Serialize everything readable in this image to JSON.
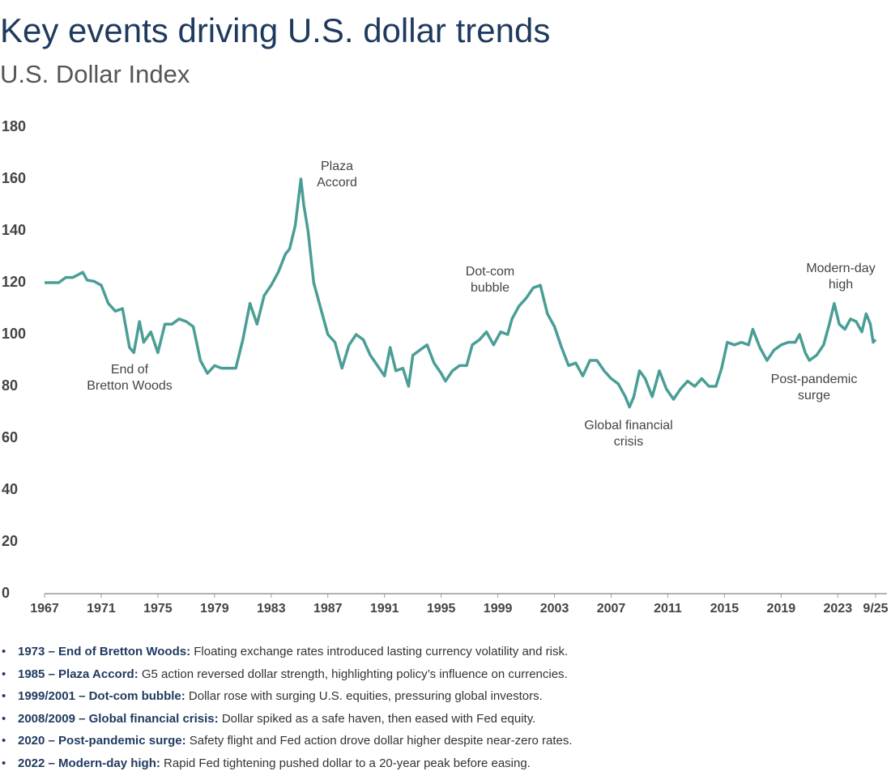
{
  "chart_data": {
    "type": "line",
    "title": "Key events driving U.S. dollar trends",
    "subtitle": "U.S. Dollar Index",
    "x": [
      1967,
      1968,
      1968.5,
      1969,
      1969.7,
      1970,
      1970.5,
      1971,
      1971.5,
      1972,
      1972.5,
      1973,
      1973.3,
      1973.7,
      1974,
      1974.5,
      1975,
      1975.5,
      1976,
      1976.5,
      1977,
      1977.5,
      1978,
      1978.5,
      1979,
      1979.5,
      1980,
      1980.5,
      1981,
      1981.5,
      1982,
      1982.5,
      1983,
      1983.5,
      1984,
      1984.3,
      1984.7,
      1985.1,
      1985.3,
      1985.6,
      1986,
      1986.5,
      1987,
      1987.5,
      1988,
      1988.5,
      1989,
      1989.5,
      1990,
      1990.5,
      1991,
      1991.4,
      1991.8,
      1992.3,
      1992.7,
      1993,
      1993.5,
      1994,
      1994.5,
      1995,
      1995.3,
      1995.8,
      1996.3,
      1996.8,
      1997.2,
      1997.7,
      1998.2,
      1998.7,
      1999.2,
      1999.7,
      2000,
      2000.5,
      2001,
      2001.5,
      2002,
      2002.5,
      2003,
      2003.5,
      2004,
      2004.5,
      2005,
      2005.5,
      2006,
      2006.5,
      2007,
      2007.5,
      2008,
      2008.3,
      2008.6,
      2009,
      2009.4,
      2009.9,
      2010.4,
      2010.9,
      2011.4,
      2011.9,
      2012.4,
      2012.9,
      2013.4,
      2013.9,
      2014.4,
      2014.8,
      2015.2,
      2015.7,
      2016.2,
      2016.7,
      2017,
      2017.5,
      2018,
      2018.5,
      2019,
      2019.5,
      2020,
      2020.3,
      2020.7,
      2021,
      2021.5,
      2022,
      2022.4,
      2022.75,
      2023.1,
      2023.5,
      2023.9,
      2024.3,
      2024.7,
      2025,
      2025.3,
      2025.5,
      2025.67
    ],
    "series": [
      {
        "name": "U.S. Dollar Index",
        "color": "#4a9e96",
        "values": [
          120,
          120,
          122,
          122,
          124,
          121,
          120.5,
          119,
          112,
          109,
          110,
          95,
          93,
          105,
          97,
          101,
          93,
          104,
          104,
          106,
          105,
          103,
          90,
          85,
          88,
          87,
          87,
          87,
          98,
          112,
          104,
          115,
          119,
          124,
          131,
          133,
          142,
          160,
          150,
          140,
          120,
          110,
          100,
          97,
          87,
          96,
          100,
          98,
          92,
          88,
          84,
          95,
          86,
          87,
          80,
          92,
          94,
          96,
          89,
          85,
          82,
          86,
          88,
          88,
          96,
          98,
          101,
          96,
          101,
          100,
          106,
          111,
          114,
          118,
          119,
          108,
          103,
          95,
          88,
          89,
          84,
          90,
          90,
          86,
          83,
          81,
          76,
          72,
          76,
          86,
          83,
          76,
          86,
          79,
          75,
          79,
          82,
          80,
          83,
          80,
          80,
          87,
          97,
          96,
          97,
          96,
          102,
          95,
          90,
          94,
          96,
          97,
          97,
          100,
          93,
          90,
          92,
          96,
          104,
          112,
          104,
          102,
          106,
          105,
          101,
          108,
          104,
          97,
          98
        ]
      }
    ],
    "xlim": [
      1967,
      2025.67
    ],
    "xticks": [
      1967,
      1971,
      1975,
      1979,
      1983,
      1987,
      1991,
      1995,
      1999,
      2003,
      2007,
      2011,
      2015,
      2019,
      2023,
      {
        "value": 2025.67,
        "label": "9/25"
      }
    ],
    "ylim": [
      0,
      180
    ],
    "yticks": [
      0,
      20,
      40,
      60,
      80,
      100,
      120,
      140,
      160,
      180
    ],
    "grid": false,
    "annotations": [
      {
        "lines": [
          "Plaza",
          "Accord"
        ]
      },
      {
        "lines": [
          "Dot-com",
          "bubble"
        ]
      },
      {
        "lines": [
          "Modern-day",
          "high"
        ]
      },
      {
        "lines": [
          "End of",
          "Bretton Woods"
        ]
      },
      {
        "lines": [
          "Global financial",
          "crisis"
        ]
      },
      {
        "lines": [
          "Post-pandemic",
          "surge"
        ]
      }
    ]
  },
  "notes": [
    {
      "lead": "1973 – End of Bretton Woods:",
      "text": "Floating exchange rates introduced lasting currency volatility and risk."
    },
    {
      "lead": "1985 – Plaza Accord:",
      "text": "G5 action reversed dollar strength, highlighting policy’s influence on currencies."
    },
    {
      "lead": "1999/2001 – Dot-com bubble:",
      "text": "Dollar rose with surging U.S. equities, pressuring global investors."
    },
    {
      "lead": "2008/2009 – Global financial crisis:",
      "text": "Dollar spiked as a safe haven, then eased with Fed equity."
    },
    {
      "lead": "2020 – Post-pandemic surge:",
      "text": "Safety flight and Fed action drove dollar higher despite near-zero rates."
    },
    {
      "lead": "2022 – Modern-day high:",
      "text": "Rapid Fed tightening pushed dollar to a 20-year peak before easing."
    }
  ]
}
